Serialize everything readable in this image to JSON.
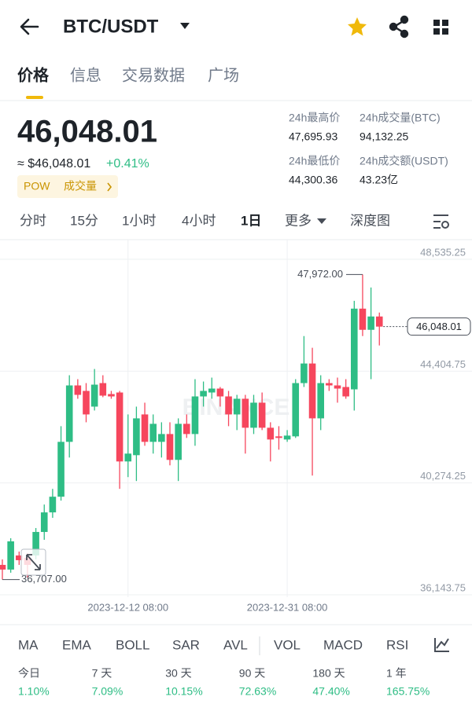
{
  "header": {
    "pair": "BTC/USDT"
  },
  "tabs": [
    "价格",
    "信息",
    "交易数据",
    "广场"
  ],
  "ticker": {
    "price": "46,048.01",
    "approx": "≈ $46,048.01",
    "change": "+0.41%",
    "tag": "POW",
    "tag_link": "成交量"
  },
  "stats": [
    {
      "label": "24h最高价",
      "value": "47,695.93"
    },
    {
      "label": "24h成交量(BTC)",
      "value": "94,132.25"
    },
    {
      "label": "24h最低价",
      "value": "44,300.36"
    },
    {
      "label": "24h成交额(USDT)",
      "value": "43.23亿"
    }
  ],
  "intervals": [
    "分时",
    "15分",
    "1小时",
    "4小时",
    "1日"
  ],
  "active_interval": 4,
  "more": "更多",
  "depth": "深度图",
  "chart_data": {
    "type": "candlestick",
    "watermark": "BINANCE",
    "categories": [
      null,
      null,
      null,
      null,
      null,
      null,
      null,
      null,
      null,
      null,
      null,
      null,
      null,
      null,
      null,
      "2023-12-12 08:00",
      null,
      null,
      null,
      null,
      null,
      null,
      null,
      null,
      null,
      null,
      null,
      null,
      null,
      null,
      null,
      null,
      null,
      null,
      "2023-12-31 08:00",
      null,
      null,
      null,
      null,
      null,
      null,
      null,
      null,
      null,
      null,
      null
    ],
    "open": [
      37248,
      37075,
      37596,
      37509,
      37596,
      38464,
      39187,
      39766,
      41792,
      43876,
      43673,
      43094,
      43962,
      43557,
      43615,
      41068,
      41300,
      42805,
      41792,
      41792,
      42081,
      41126,
      42458,
      42081,
      43470,
      43615,
      43760,
      43470,
      42805,
      43384,
      42313,
      43239,
      42313,
      41995,
      41879,
      41995,
      43962,
      44686,
      42660,
      43962,
      43876,
      43818,
      43731,
      46712,
      45930,
      46422
    ],
    "high": [
      37451,
      38232,
      37740,
      37682,
      38609,
      39477,
      40056,
      42371,
      44252,
      44107,
      43962,
      44483,
      44252,
      43673,
      43673,
      42805,
      43094,
      43239,
      42805,
      42515,
      42515,
      42660,
      42805,
      44107,
      44020,
      44165,
      43818,
      43673,
      43528,
      43528,
      43528,
      43615,
      42515,
      42371,
      42226,
      44107,
      45699,
      45265,
      44252,
      44107,
      44165,
      44107,
      47001,
      47972,
      47493,
      46567
    ],
    "low": [
      36707,
      36959,
      37248,
      36785,
      37451,
      38174,
      38985,
      39621,
      41213,
      43384,
      42515,
      42950,
      43442,
      43384,
      40056,
      40490,
      40345,
      41647,
      41358,
      41213,
      40924,
      40345,
      41937,
      41647,
      43094,
      43384,
      43094,
      42371,
      42226,
      41358,
      42081,
      42226,
      41068,
      41503,
      41792,
      41937,
      43818,
      40548,
      42226,
      43673,
      43239,
      43384,
      42950,
      45699,
      44107,
      45352
    ],
    "close": [
      37075,
      38117,
      37422,
      37248,
      38464,
      39187,
      39766,
      41792,
      43876,
      43528,
      42805,
      43905,
      43499,
      43470,
      41068,
      41358,
      42660,
      41792,
      42458,
      42081,
      41126,
      42458,
      42081,
      43470,
      43673,
      43760,
      43470,
      42805,
      43384,
      42313,
      43239,
      42313,
      41879,
      41937,
      42023,
      43962,
      44686,
      42660,
      43962,
      43876,
      43760,
      43470,
      46712,
      45930,
      46422,
      46048.01
    ],
    "up_color": "#2ebd85",
    "down_color": "#f6465d",
    "ylim": [
      35186,
      49260
    ],
    "yticks": [
      {
        "value": 48535.25,
        "label": "48,535.25"
      },
      {
        "value": 44404.75,
        "label": "44,404.75"
      },
      {
        "value": 40274.25,
        "label": "40,274.25"
      },
      {
        "value": 36143.75,
        "label": "36,143.75"
      }
    ],
    "grid": true,
    "max_marker": {
      "value": 47972,
      "label": "47,972.00"
    },
    "min_marker": {
      "value": 36707,
      "label": "36,707.00"
    },
    "last_marker": {
      "value": 46048.01,
      "label": "46,048.01"
    }
  },
  "indicators": [
    "MA",
    "EMA",
    "BOLL",
    "SAR",
    "AVL",
    "VOL",
    "MACD",
    "RSI"
  ],
  "performance": [
    {
      "period": "今日",
      "change": "1.10%"
    },
    {
      "period": "7 天",
      "change": "7.09%"
    },
    {
      "period": "30 天",
      "change": "10.15%"
    },
    {
      "period": "90 天",
      "change": "72.63%"
    },
    {
      "period": "180 天",
      "change": "47.40%"
    },
    {
      "period": "1 年",
      "change": "165.75%"
    }
  ]
}
